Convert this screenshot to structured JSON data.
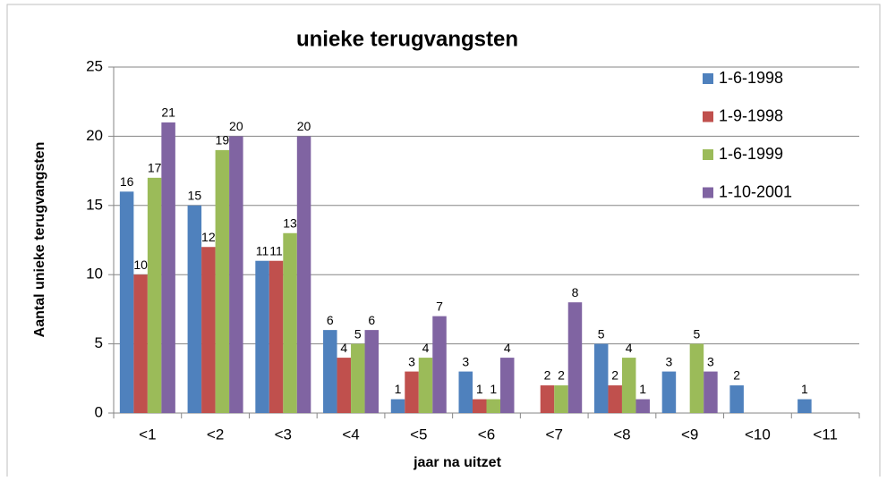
{
  "chart_data": {
    "type": "bar",
    "title": "unieke terugvangsten",
    "x_label": "jaar na uitzet",
    "y_label": "Aantal unieke terugvangsten",
    "categories": [
      "<1",
      "<2",
      "<3",
      "<4",
      "<5",
      "<6",
      "<7",
      "<8",
      "<9",
      "<10",
      "<11"
    ],
    "series": [
      {
        "name": "1-6-1998",
        "color": "#4f81bd",
        "values": [
          16,
          15,
          11,
          6,
          1,
          3,
          null,
          5,
          3,
          2,
          1
        ]
      },
      {
        "name": "1-9-1998",
        "color": "#c0504d",
        "values": [
          10,
          12,
          11,
          4,
          3,
          1,
          2,
          2,
          null,
          null,
          null
        ]
      },
      {
        "name": "1-6-1999",
        "color": "#9bbb59",
        "values": [
          17,
          19,
          13,
          5,
          4,
          1,
          2,
          4,
          5,
          null,
          null
        ]
      },
      {
        "name": "1-10-2001",
        "color": "#8064a2",
        "values": [
          21,
          20,
          20,
          6,
          7,
          4,
          8,
          1,
          3,
          null,
          null
        ]
      }
    ],
    "ylim": [
      0,
      25
    ],
    "yticks": [
      0,
      5,
      10,
      15,
      20,
      25
    ],
    "grid": true,
    "legend": "right"
  }
}
